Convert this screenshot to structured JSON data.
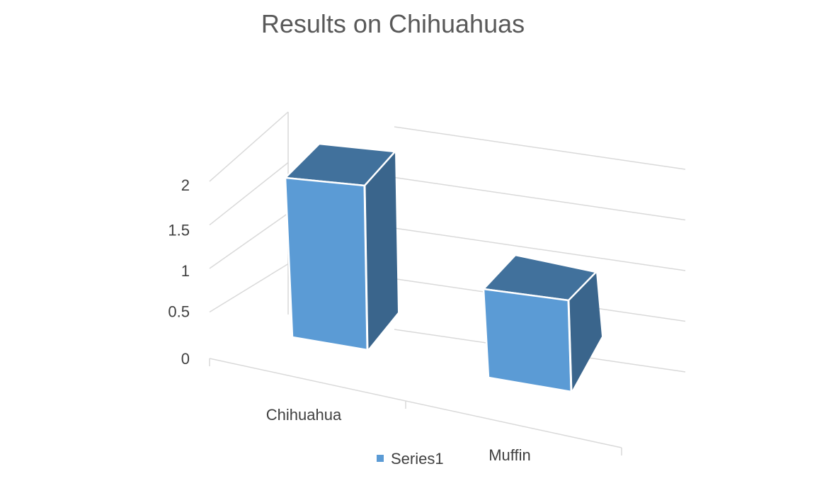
{
  "chart_data": {
    "type": "bar",
    "title": "Results on Chihuahuas",
    "categories": [
      "Chihuahua",
      "Muffin"
    ],
    "series": [
      {
        "name": "Series1",
        "values": [
          2,
          1
        ]
      }
    ],
    "yticks": [
      "0",
      "0.5",
      "1",
      "1.5",
      "2"
    ],
    "ylim": [
      0,
      2
    ],
    "grid": true,
    "legend": "bottom",
    "style": "3d",
    "colors": {
      "front": "#5b9bd5",
      "top": "#41719c",
      "side": "#3a658c",
      "grid": "#d9d9d9",
      "text": "#404040",
      "title": "#595959"
    }
  }
}
